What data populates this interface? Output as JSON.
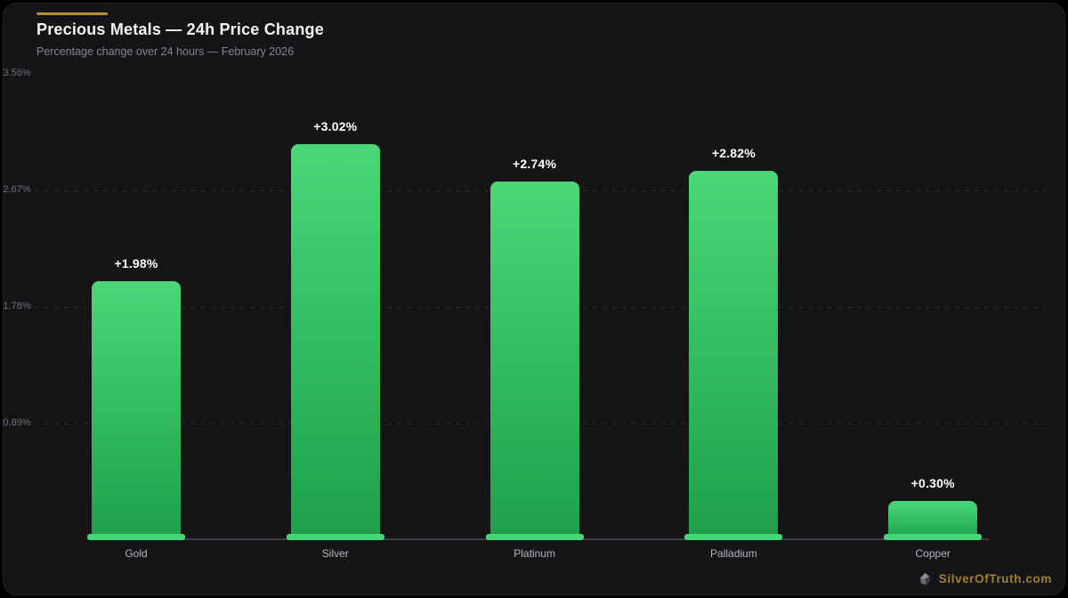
{
  "header": {
    "title": "Precious Metals — 24h Price Change",
    "subtitle": "Percentage change over 24 hours — February 2026"
  },
  "chart_data": {
    "type": "bar",
    "title": "Precious Metals — 24h Price Change",
    "subtitle": "Percentage change over 24 hours — February 2026",
    "categories": [
      "Gold",
      "Silver",
      "Platinum",
      "Palladium",
      "Copper"
    ],
    "values": [
      1.98,
      3.02,
      2.74,
      2.82,
      0.3
    ],
    "value_labels": [
      "+1.98%",
      "+3.02%",
      "+2.74%",
      "+2.82%",
      "+0.30%"
    ],
    "y_ticks": [
      {
        "value": 3.56,
        "label": "+3.56%",
        "gridline": false
      },
      {
        "value": 2.67,
        "label": "+2.67%",
        "gridline": true
      },
      {
        "value": 1.78,
        "label": "+1.78%",
        "gridline": true
      },
      {
        "value": 0.89,
        "label": "+0.89%",
        "gridline": true
      }
    ],
    "ylim": [
      0,
      3.56
    ],
    "xlabel": "",
    "ylabel": "",
    "grid": "horizontal-dashed",
    "legend": "none",
    "bar_colors": {
      "top": "#4bd778",
      "mid": "#2bb45a",
      "bottom": "#1f9f4b",
      "base_strip": "#41d976"
    }
  },
  "footer": {
    "brand": "SilverOfTruth.com",
    "brand_color": "#a1802c",
    "icon": "silver-nugget-icon"
  },
  "colors": {
    "background": "#000000",
    "card_background": "#151518",
    "accent_gold": "#b5912e",
    "axis_line": "#3e3e45",
    "tick_text": "#6f6f78",
    "category_text": "#b5b5bd",
    "value_text": "#ffffff"
  }
}
